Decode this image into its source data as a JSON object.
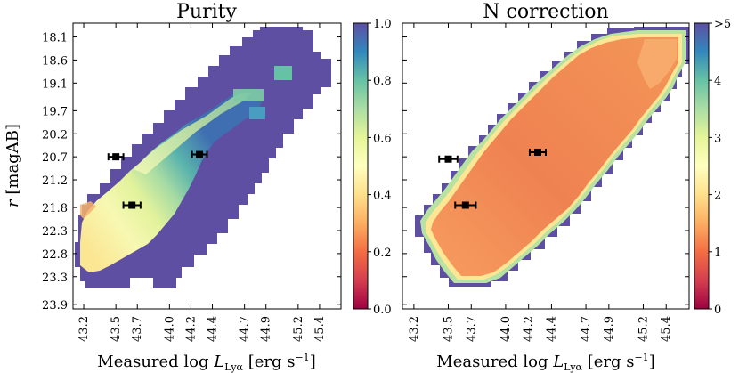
{
  "chart_data": [
    {
      "type": "heatmap",
      "title": "Purity",
      "xlabel": "Measured log L_Lyα [erg s⁻¹]",
      "xlabel_parts": {
        "pre": "Measured log ",
        "L": "L",
        "sub": "Lyα",
        "post": " [erg s",
        "sup": "−1",
        "end": "]"
      },
      "ylabel": "r [magAB]",
      "ylabel_parts": {
        "var": "r",
        "rest": " [magAB]"
      },
      "x_ticks": [
        "43.2",
        "43.5",
        "43.7",
        "44.0",
        "44.2",
        "44.4",
        "44.7",
        "44.9",
        "45.2",
        "45.4"
      ],
      "y_ticks": [
        "18.1",
        "18.6",
        "19.1",
        "19.7",
        "20.2",
        "20.7",
        "21.2",
        "21.8",
        "22.3",
        "22.8",
        "23.3",
        "23.9"
      ],
      "xlim": [
        43.1,
        45.6
      ],
      "ylim": [
        24.0,
        17.8
      ],
      "colorbar": {
        "min": 0.0,
        "max": 1.0,
        "ticks": [
          "0.0",
          "0.2",
          "0.4",
          "0.6",
          "0.8",
          "1.0"
        ],
        "colormap": "Spectral"
      },
      "region_edges": {
        "lower_left": [
          [
            43.33,
            23.45
          ],
          [
            43.45,
            23.55
          ],
          [
            43.6,
            23.55
          ],
          [
            43.75,
            23.5
          ],
          [
            43.9,
            23.55
          ],
          [
            44.0,
            23.3
          ],
          [
            44.15,
            23.1
          ],
          [
            44.3,
            22.7
          ],
          [
            44.5,
            22.2
          ],
          [
            44.65,
            21.8
          ],
          [
            44.8,
            21.4
          ],
          [
            44.95,
            21.0
          ],
          [
            45.1,
            20.6
          ],
          [
            45.2,
            20.3
          ],
          [
            45.22,
            20.0
          ]
        ],
        "upper_right": [
          [
            45.22,
            20.0
          ],
          [
            45.25,
            19.8
          ],
          [
            45.3,
            19.4
          ],
          [
            45.35,
            19.2
          ],
          [
            45.42,
            19.0
          ],
          [
            45.42,
            18.3
          ],
          [
            45.42,
            17.8
          ],
          [
            44.9,
            17.8
          ],
          [
            44.45,
            18.6
          ],
          [
            44.3,
            18.7
          ],
          [
            44.1,
            19.0
          ],
          [
            44.0,
            19.2
          ],
          [
            43.85,
            19.55
          ],
          [
            43.7,
            20.0
          ],
          [
            43.55,
            20.4
          ],
          [
            43.45,
            20.8
          ],
          [
            43.4,
            21.0
          ],
          [
            43.33,
            21.4
          ],
          [
            43.25,
            21.9
          ],
          [
            43.2,
            22.4
          ],
          [
            43.22,
            22.9
          ],
          [
            43.28,
            23.2
          ],
          [
            43.33,
            23.45
          ]
        ]
      },
      "value_notes": {
        "purity_peak": 0.45,
        "purity_inner": 0.3,
        "purity_band_high": 0.75
      },
      "errorbars": [
        {
          "x": 43.5,
          "xerr": 0.07,
          "y": 20.7
        },
        {
          "x": 43.65,
          "xerr": 0.08,
          "y": 21.75
        },
        {
          "x": 44.28,
          "xerr": 0.07,
          "y": 20.65
        }
      ]
    },
    {
      "type": "heatmap",
      "title": "N correction",
      "xlabel": "Measured log L_Lyα [erg s⁻¹]",
      "xlabel_parts": {
        "pre": "Measured log ",
        "L": "L",
        "sub": "Lyα",
        "post": " [erg s",
        "sup": "−1",
        "end": "]"
      },
      "x_ticks": [
        "43.2",
        "43.5",
        "43.7",
        "44.0",
        "44.2",
        "44.4",
        "44.7",
        "44.9",
        "45.2",
        "45.4"
      ],
      "xlim": [
        43.1,
        45.6
      ],
      "ylim": [
        24.0,
        17.8
      ],
      "colorbar": {
        "min": 0,
        "max": 5,
        "ticks": [
          "0",
          "1",
          "2",
          "3",
          "4",
          ">5"
        ],
        "colormap": "Spectral"
      },
      "value_notes": {
        "typical_correction": 1.0,
        "edge_correction": 2.0
      },
      "errorbars": [
        {
          "x": 43.5,
          "xerr": 0.08,
          "y": 20.75
        },
        {
          "x": 43.65,
          "xerr": 0.09,
          "y": 21.75
        },
        {
          "x": 44.28,
          "xerr": 0.07,
          "y": 20.6
        }
      ]
    }
  ]
}
